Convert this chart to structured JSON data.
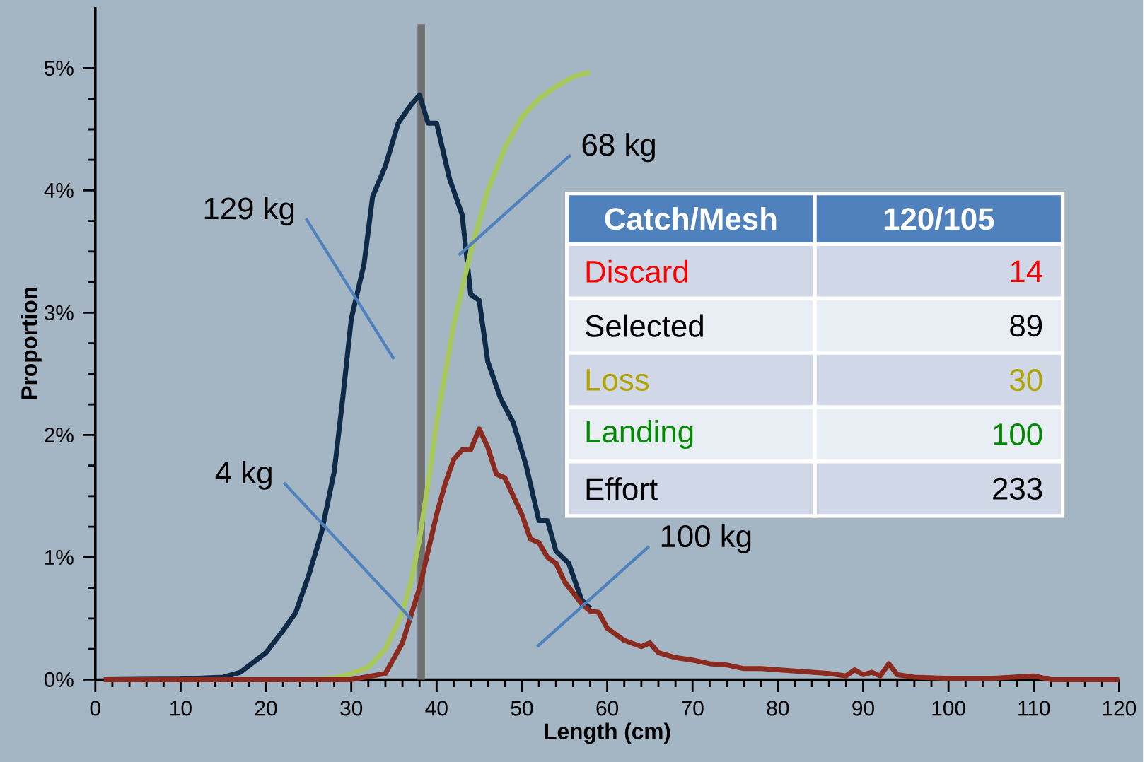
{
  "chart_data": {
    "type": "line",
    "xlabel": "Length (cm)",
    "ylabel": "Proportion",
    "xlim": [
      0,
      120
    ],
    "xticks": [
      0,
      10,
      20,
      30,
      40,
      50,
      60,
      70,
      80,
      90,
      100,
      110,
      120
    ],
    "ylim": [
      0,
      5.5
    ],
    "yticks": [
      {
        "value": 0,
        "label": "0%"
      },
      {
        "value": 1,
        "label": "1%"
      },
      {
        "value": 2,
        "label": "2%"
      },
      {
        "value": 3,
        "label": "3%"
      },
      {
        "value": 4,
        "label": "4%"
      },
      {
        "value": 5,
        "label": "5%"
      }
    ],
    "grid": false,
    "marker": "none",
    "line_style": "solid",
    "series": [
      {
        "color": "#0f2a47",
        "x": [
          1,
          10,
          15,
          17,
          20,
          22,
          23.5,
          25,
          26.5,
          28,
          29,
          30,
          31.5,
          32.5,
          34,
          35.5,
          37,
          38,
          39,
          40,
          41.5,
          43,
          44,
          45,
          46,
          47.5,
          49,
          50.5,
          52,
          53,
          54,
          55.5,
          57,
          58
        ],
        "values": [
          0,
          0.005,
          0.02,
          0.06,
          0.22,
          0.4,
          0.55,
          0.85,
          1.2,
          1.7,
          2.3,
          2.95,
          3.4,
          3.95,
          4.2,
          4.55,
          4.7,
          4.78,
          4.55,
          4.55,
          4.1,
          3.8,
          3.15,
          3.1,
          2.6,
          2.3,
          2.1,
          1.75,
          1.3,
          1.3,
          1.05,
          0.95,
          0.65,
          0.58
        ]
      },
      {
        "color": "#a9c85a",
        "x": [
          25,
          28,
          30,
          32,
          34,
          36,
          37,
          38,
          39,
          40,
          41,
          42,
          43,
          44,
          45,
          46,
          48,
          50,
          52,
          54,
          56,
          58
        ],
        "values": [
          0,
          0.01,
          0.05,
          0.1,
          0.25,
          0.55,
          0.8,
          1.15,
          1.6,
          2.1,
          2.5,
          2.9,
          3.2,
          3.5,
          3.75,
          4.0,
          4.35,
          4.6,
          4.75,
          4.85,
          4.93,
          4.97
        ]
      },
      {
        "color": "#8b2a1e",
        "x": [
          1,
          30,
          34,
          36,
          38,
          40,
          41,
          42,
          43,
          44,
          45,
          46,
          47,
          48,
          49,
          50,
          51,
          52,
          53,
          54,
          55,
          57,
          58,
          59,
          60,
          62,
          64,
          65,
          66,
          68,
          70,
          72,
          74,
          76,
          78,
          80,
          82,
          84,
          86,
          88,
          89,
          90,
          91,
          92,
          93,
          94,
          96,
          100,
          105,
          110,
          112,
          120
        ],
        "values": [
          0,
          0,
          0.05,
          0.3,
          0.75,
          1.35,
          1.6,
          1.8,
          1.88,
          1.88,
          2.05,
          1.9,
          1.68,
          1.65,
          1.5,
          1.35,
          1.15,
          1.12,
          1.0,
          0.95,
          0.8,
          0.62,
          0.56,
          0.55,
          0.42,
          0.32,
          0.27,
          0.3,
          0.22,
          0.18,
          0.16,
          0.13,
          0.12,
          0.09,
          0.09,
          0.08,
          0.07,
          0.06,
          0.05,
          0.03,
          0.08,
          0.04,
          0.06,
          0.03,
          0.13,
          0.04,
          0.02,
          0.01,
          0.01,
          0.03,
          0,
          0
        ]
      }
    ],
    "ref_lines": [
      {
        "axis": "x",
        "value": 38.2,
        "color": "#707070"
      }
    ],
    "annotations": [
      "129 kg",
      "68 kg",
      {
        "text": "4 kg",
        "x": 37.1,
        "y": 0.49
      },
      "100 kg",
      "Catch/Mesh",
      "120/105",
      "Discard",
      "14",
      "Selected",
      "89",
      "Loss",
      "30",
      "Landing",
      "100",
      "Effort",
      "233"
    ]
  }
}
